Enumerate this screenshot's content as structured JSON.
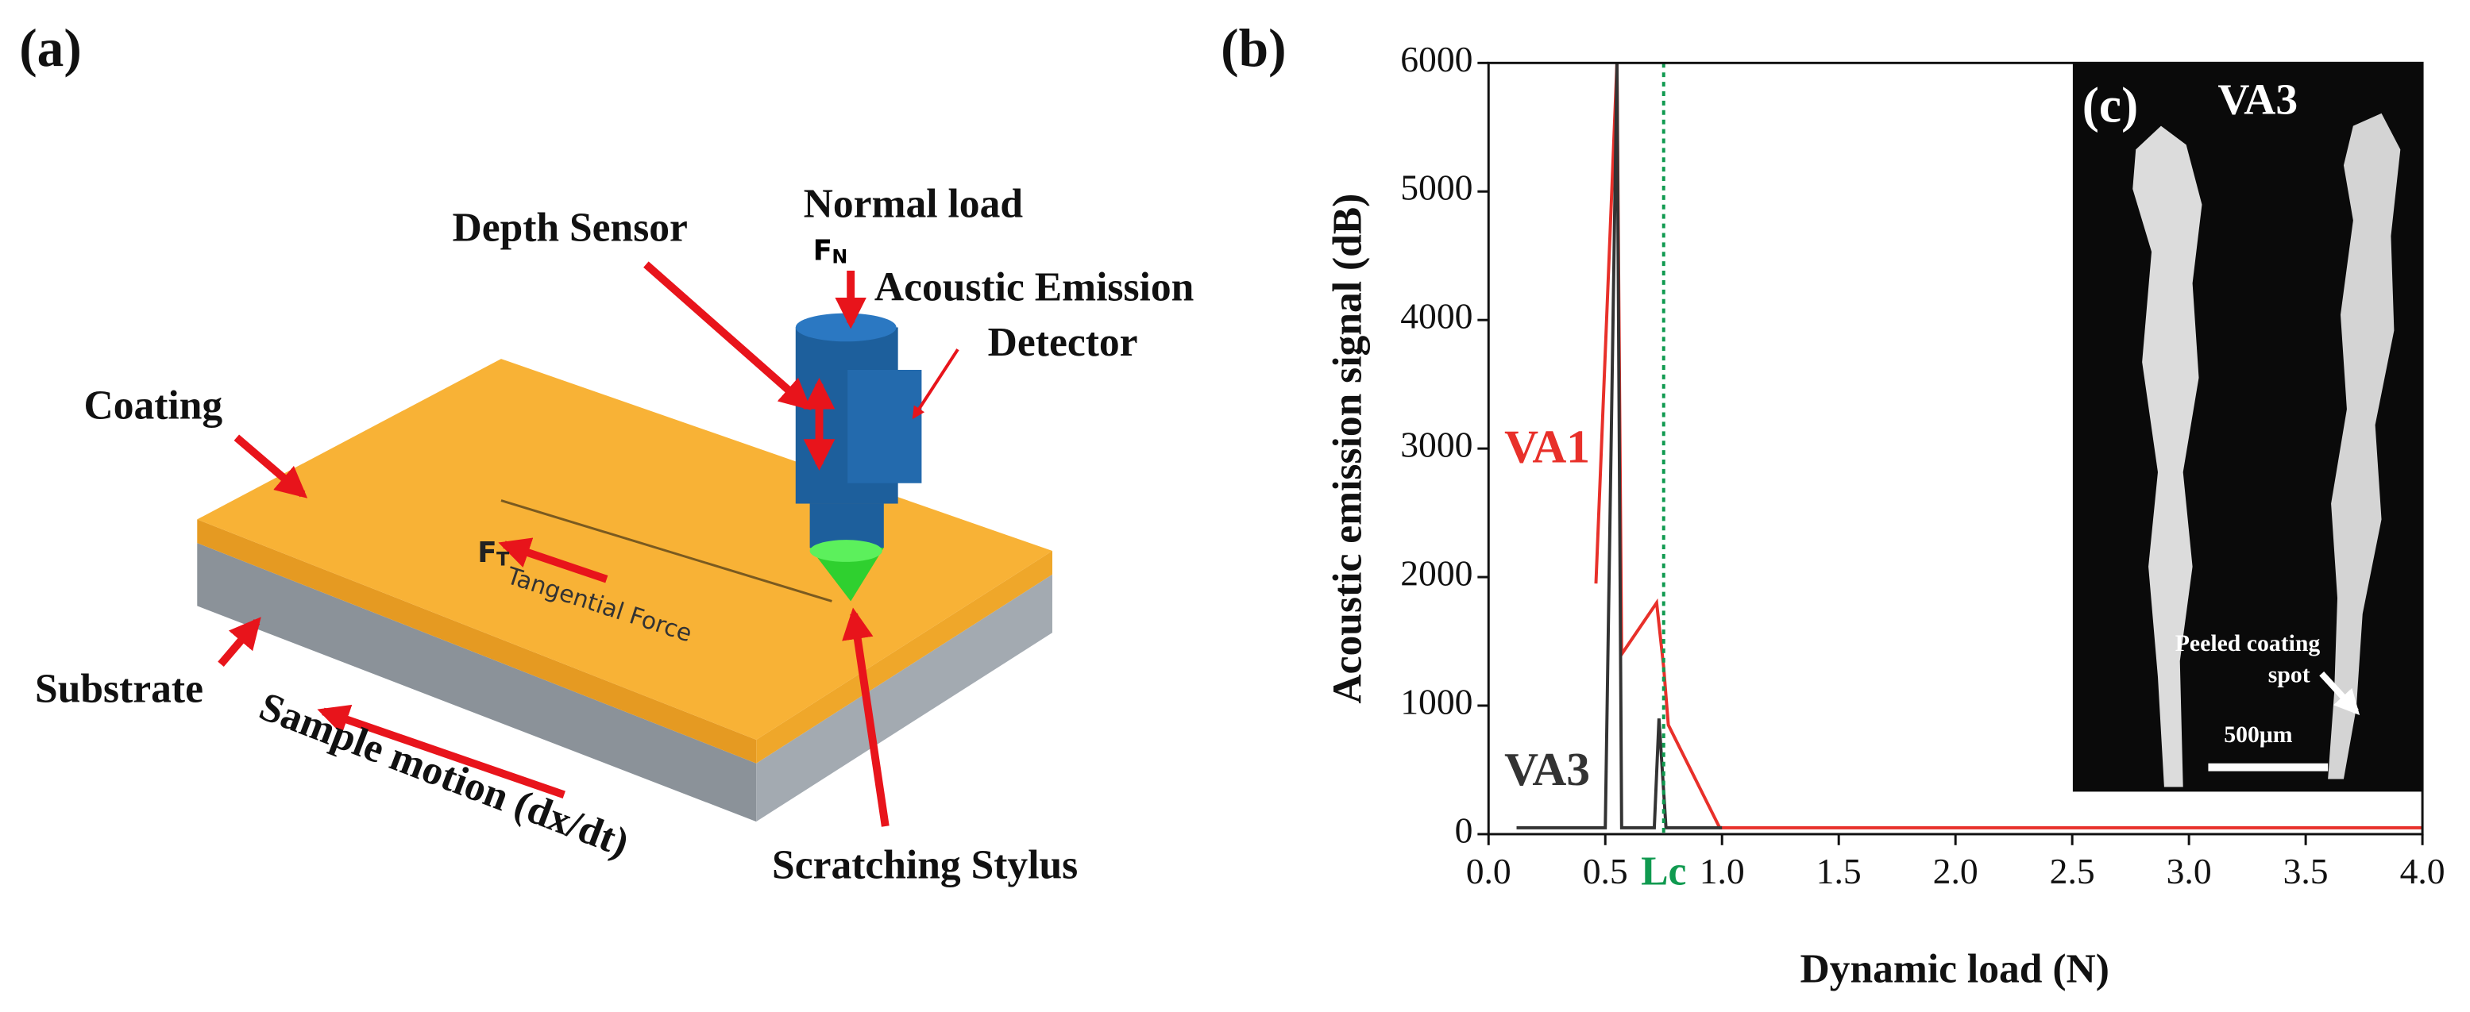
{
  "panel_a": {
    "label": "(a)",
    "normal_load": "Normal load",
    "normal_force": {
      "symbol": "F",
      "subscript": "N"
    },
    "depth_sensor": "Depth Sensor",
    "detector": [
      "Acoustic Emission",
      "Detector"
    ],
    "coating": "Coating",
    "substrate": "Substrate",
    "sample_motion": "Sample motion (dx/dt)",
    "stylus": "Scratching Stylus",
    "tangential_force": {
      "symbol": "F",
      "subscript": "T",
      "text": "Tangential Force"
    }
  },
  "chart_data": {
    "type": "line",
    "label": "(b)",
    "xlabel": "Dynamic load (N)",
    "ylabel": "Acoustic emission signal (dB)",
    "xlim": [
      0,
      4
    ],
    "ylim": [
      0,
      6000
    ],
    "xticks": [
      {
        "value": 0,
        "label": "0.0"
      },
      0.5,
      {
        "value": 1,
        "label": "1.0"
      },
      1.5,
      {
        "value": 2,
        "label": "2.0"
      },
      2.5,
      {
        "value": 3,
        "label": "3.0"
      },
      3.5,
      {
        "value": 4,
        "label": "4.0"
      }
    ],
    "yticks": [
      0,
      1000,
      2000,
      3000,
      4000,
      5000,
      6000
    ],
    "series": [
      {
        "name": "VA1",
        "color": "#e8302a",
        "x": [
          0.46,
          0.55,
          0.57,
          0.72,
          0.75,
          0.77,
          0.99,
          4.0
        ],
        "values": [
          1950,
          6000,
          1400,
          1800,
          1300,
          850,
          50,
          50
        ]
      },
      {
        "name": "VA3",
        "color": "#333333",
        "x": [
          0.12,
          0.5,
          0.55,
          0.57,
          0.71,
          0.73,
          0.76,
          1.0
        ],
        "values": [
          50,
          50,
          6000,
          50,
          50,
          900,
          50,
          50
        ]
      }
    ],
    "annotation": {
      "text": "Lc",
      "x": 0.75,
      "color": "#109a50"
    },
    "inset": {
      "label": "(c)",
      "title": "VA3",
      "note": [
        "Peeled coating",
        "spot"
      ],
      "scale_bar": "500μm"
    }
  }
}
